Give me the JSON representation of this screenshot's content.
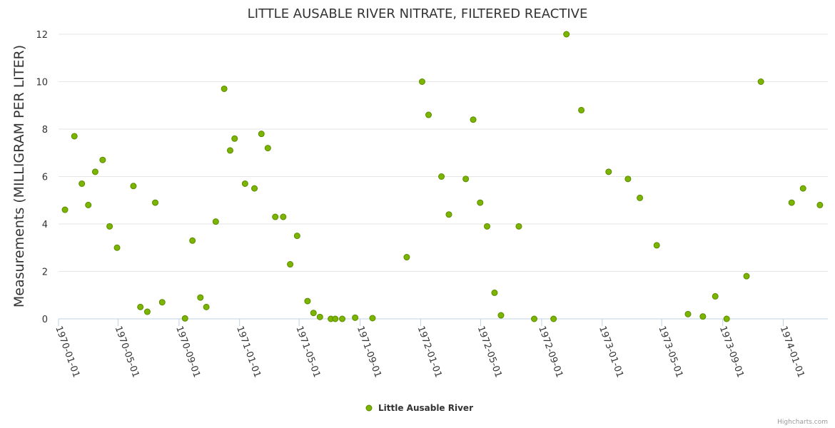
{
  "chart_data": {
    "type": "scatter",
    "title": "LITTLE AUSABLE RIVER NITRATE, FILTERED REACTIVE",
    "xlabel": "",
    "ylabel": "Measurements (MILLIGRAM PER LITER)",
    "ylim": [
      0,
      12
    ],
    "yticks": [
      0,
      2,
      4,
      6,
      8,
      10,
      12
    ],
    "xlim": [
      "1970-01-01",
      "1974-04-01"
    ],
    "xticks": [
      "1970-01-01",
      "1970-05-01",
      "1970-09-01",
      "1971-01-01",
      "1971-05-01",
      "1971-09-01",
      "1972-01-01",
      "1972-05-01",
      "1972-09-01",
      "1973-01-01",
      "1973-05-01",
      "1973-09-01",
      "1974-01-01"
    ],
    "grid": true,
    "legend": "bottom-center",
    "series": [
      {
        "name": "Little Ausable River",
        "color": "#7cb500",
        "points": [
          [
            "1970-01-14",
            4.6
          ],
          [
            "1970-02-02",
            7.7
          ],
          [
            "1970-02-17",
            5.7
          ],
          [
            "1970-03-02",
            4.8
          ],
          [
            "1970-03-16",
            6.2
          ],
          [
            "1970-03-31",
            6.7
          ],
          [
            "1970-04-14",
            3.9
          ],
          [
            "1970-04-29",
            3.0
          ],
          [
            "1970-06-01",
            5.6
          ],
          [
            "1970-06-15",
            0.5
          ],
          [
            "1970-06-29",
            0.3
          ],
          [
            "1970-07-15",
            4.9
          ],
          [
            "1970-07-29",
            0.7
          ],
          [
            "1970-09-13",
            0.02
          ],
          [
            "1970-09-28",
            3.3
          ],
          [
            "1970-10-14",
            0.9
          ],
          [
            "1970-10-26",
            0.5
          ],
          [
            "1970-11-14",
            4.1
          ],
          [
            "1970-12-01",
            9.7
          ],
          [
            "1970-12-13",
            7.1
          ],
          [
            "1970-12-22",
            7.6
          ],
          [
            "1971-01-12",
            5.7
          ],
          [
            "1971-01-31",
            5.5
          ],
          [
            "1971-02-14",
            7.8
          ],
          [
            "1971-02-27",
            7.2
          ],
          [
            "1971-03-14",
            4.3
          ],
          [
            "1971-03-30",
            4.3
          ],
          [
            "1971-04-13",
            2.3
          ],
          [
            "1971-04-27",
            3.5
          ],
          [
            "1971-05-18",
            0.75
          ],
          [
            "1971-05-30",
            0.25
          ],
          [
            "1971-06-12",
            0.08
          ],
          [
            "1971-07-04",
            0.0
          ],
          [
            "1971-07-13",
            0.0
          ],
          [
            "1971-07-27",
            0.0
          ],
          [
            "1971-08-22",
            0.05
          ],
          [
            "1971-09-26",
            0.03
          ],
          [
            "1971-12-04",
            2.6
          ],
          [
            "1972-01-04",
            10.0
          ],
          [
            "1972-01-17",
            8.6
          ],
          [
            "1972-02-12",
            6.0
          ],
          [
            "1972-02-27",
            4.4
          ],
          [
            "1972-04-01",
            5.9
          ],
          [
            "1972-04-16",
            8.4
          ],
          [
            "1972-04-30",
            4.9
          ],
          [
            "1972-05-14",
            3.9
          ],
          [
            "1972-05-29",
            1.1
          ],
          [
            "1972-06-11",
            0.15
          ],
          [
            "1972-07-17",
            3.9
          ],
          [
            "1972-08-17",
            0.0
          ],
          [
            "1972-09-25",
            0.0
          ],
          [
            "1972-10-21",
            12.0
          ],
          [
            "1972-11-20",
            8.8
          ],
          [
            "1973-01-14",
            6.2
          ],
          [
            "1973-02-22",
            5.9
          ],
          [
            "1973-03-18",
            5.1
          ],
          [
            "1973-04-21",
            3.1
          ],
          [
            "1973-06-23",
            0.2
          ],
          [
            "1973-07-23",
            0.1
          ],
          [
            "1973-08-17",
            0.95
          ],
          [
            "1973-09-09",
            0.0
          ],
          [
            "1973-10-19",
            1.8
          ],
          [
            "1973-11-17",
            10.0
          ],
          [
            "1974-01-18",
            4.9
          ],
          [
            "1974-02-10",
            5.5
          ],
          [
            "1974-03-16",
            4.8
          ]
        ]
      }
    ]
  },
  "credit": "Highcharts.com"
}
